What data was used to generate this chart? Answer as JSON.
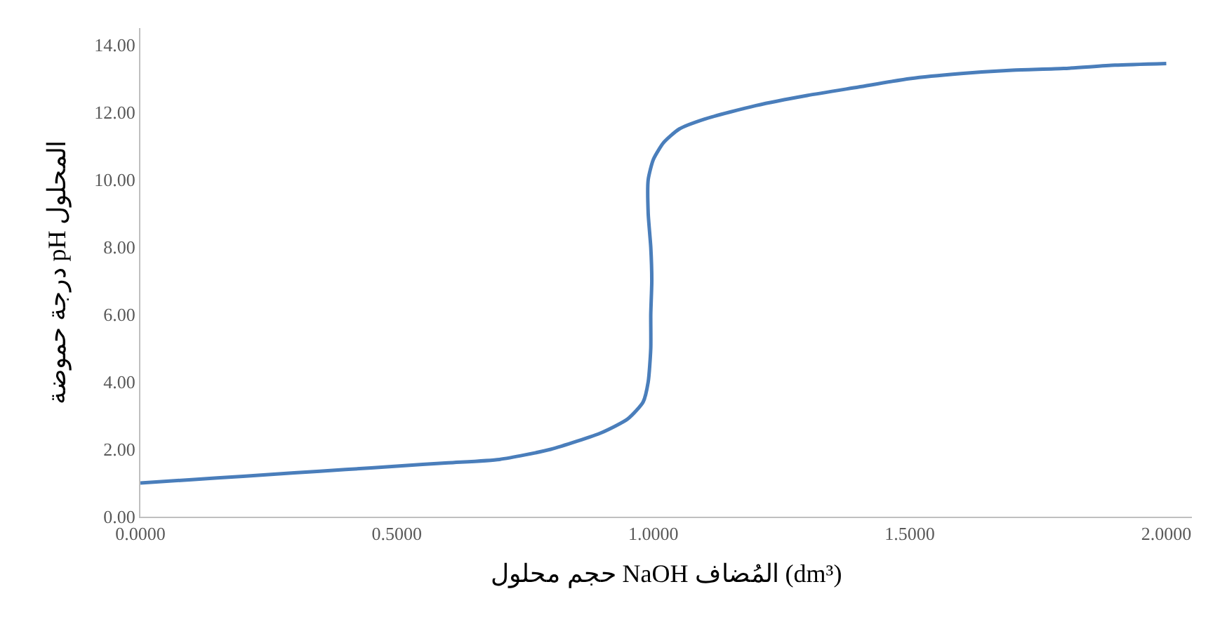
{
  "chart_data": {
    "type": "line",
    "xlabel": "حجم محلول NaOH المُضاف (dm³)",
    "ylabel": "درجة حموضة pH المحلول",
    "series": [
      {
        "color": "#4a7ebb",
        "x": [
          0,
          0.1,
          0.2,
          0.3,
          0.4,
          0.5,
          0.6,
          0.7,
          0.8,
          0.9,
          0.95,
          0.98,
          0.99,
          0.995,
          0.995,
          0.997,
          0.995,
          0.99,
          0.99,
          1.0,
          1.02,
          1.05,
          1.1,
          1.2,
          1.3,
          1.4,
          1.5,
          1.6,
          1.7,
          1.8,
          1.9,
          2.0
        ],
        "values": [
          1.0,
          1.1,
          1.2,
          1.3,
          1.4,
          1.5,
          1.6,
          1.7,
          2.0,
          2.5,
          2.9,
          3.4,
          4.0,
          5.0,
          6.0,
          7.0,
          8.0,
          9.0,
          10.0,
          10.6,
          11.1,
          11.5,
          11.8,
          12.2,
          12.5,
          12.75,
          13.0,
          13.15,
          13.25,
          13.3,
          13.4,
          13.45
        ]
      }
    ],
    "xlim": [
      0,
      2.05
    ],
    "ylim": [
      0,
      14.5
    ],
    "xticks": [
      {
        "value": 0,
        "label": "0.0000"
      },
      {
        "value": 0.5,
        "label": "0.5000"
      },
      {
        "value": 1.0,
        "label": "1.0000"
      },
      {
        "value": 1.5,
        "label": "1.5000"
      },
      {
        "value": 2.0,
        "label": "2.0000"
      }
    ],
    "yticks": [
      {
        "value": 0,
        "label": "0.00"
      },
      {
        "value": 2,
        "label": "2.00"
      },
      {
        "value": 4,
        "label": "4.00"
      },
      {
        "value": 6,
        "label": "6.00"
      },
      {
        "value": 8,
        "label": "8.00"
      },
      {
        "value": 10,
        "label": "10.00"
      },
      {
        "value": 12,
        "label": "12.00"
      },
      {
        "value": 14,
        "label": "14.00"
      }
    ],
    "marker": "none",
    "line_style": "solid"
  }
}
